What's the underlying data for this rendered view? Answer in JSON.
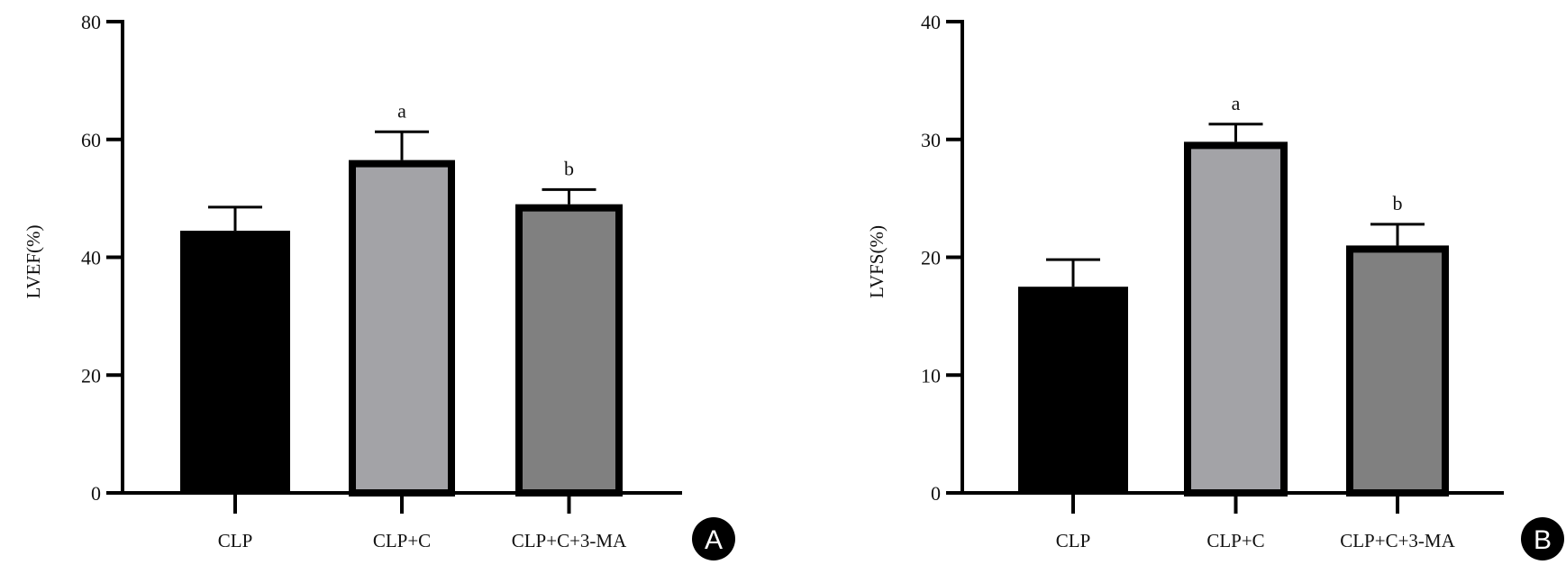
{
  "chart_data": [
    {
      "type": "bar",
      "panel": "A",
      "ylabel": "LVEF(%)",
      "ylim": [
        0,
        80
      ],
      "yticks": [
        0,
        20,
        40,
        60,
        80
      ],
      "categories": [
        "CLP",
        "CLP+C",
        "CLP+C+3-MA"
      ],
      "values": [
        44.5,
        56.5,
        49
      ],
      "error_upper": [
        48.5,
        61.3,
        51.5
      ],
      "significance": [
        "",
        "a",
        "b"
      ],
      "colors": [
        "#000000",
        "#a3a3a7",
        "#808080"
      ],
      "grid": false
    },
    {
      "type": "bar",
      "panel": "B",
      "ylabel": "LVFS(%)",
      "ylim": [
        0,
        40
      ],
      "yticks": [
        0,
        10,
        20,
        30,
        40
      ],
      "categories": [
        "CLP",
        "CLP+C",
        "CLP+C+3-MA"
      ],
      "values": [
        17.5,
        29.8,
        21
      ],
      "error_upper": [
        19.8,
        31.3,
        22.8
      ],
      "significance": [
        "",
        "a",
        "b"
      ],
      "colors": [
        "#000000",
        "#a3a3a7",
        "#808080"
      ],
      "grid": false
    }
  ]
}
